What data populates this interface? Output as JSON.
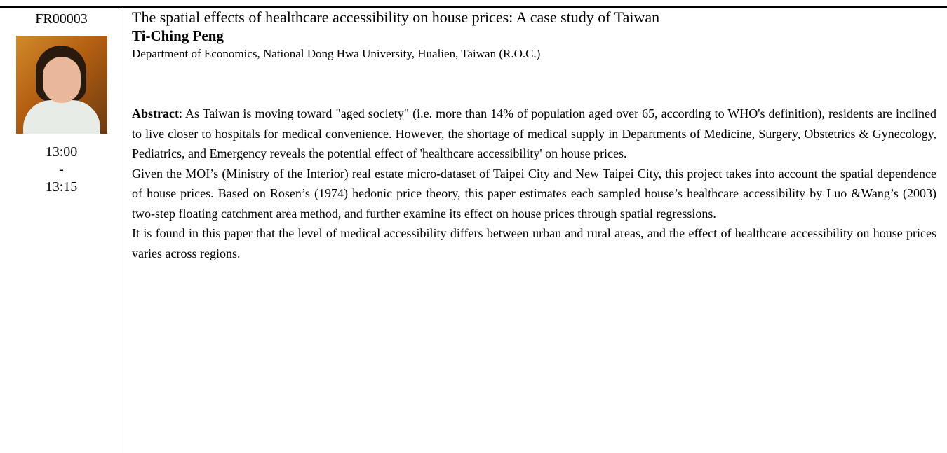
{
  "session": {
    "id": "FR00003",
    "time_start": "13:00",
    "time_separator": "-",
    "time_end": "13:15"
  },
  "paper": {
    "title": "The spatial effects of healthcare accessibility on house prices: A case study of Taiwan",
    "author": "Ti-Ching Peng",
    "affiliation": "Department of Economics, National Dong Hwa University, Hualien, Taiwan (R.O.C.)",
    "abstract_label": "Abstract",
    "paragraphs": [
      ": As Taiwan is moving toward \"aged society\" (i.e. more than 14% of population aged over 65, according to WHO's definition), residents are inclined to live closer to hospitals for medical convenience. However, the shortage of medical supply in Departments of Medicine, Surgery, Obstetrics & Gynecology, Pediatrics, and Emergency reveals the potential effect of 'healthcare accessibility' on house prices.",
      "Given the MOI’s (Ministry of the Interior) real estate micro-dataset of Taipei City and New Taipei City, this project takes into account the spatial dependence of house prices. Based on Rosen’s (1974) hedonic price theory, this paper estimates each sampled house’s healthcare accessibility by Luo &Wang’s (2003) two-step floating catchment area method, and further examine its effect on house prices through spatial regressions.",
      "It is found in this paper that the level of medical accessibility differs between urban and rural areas, and the effect of healthcare accessibility on house prices varies across regions."
    ]
  }
}
